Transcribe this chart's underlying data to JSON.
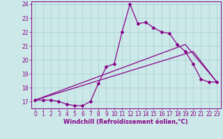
{
  "xlabel": "Windchill (Refroidissement éolien,°C)",
  "bg_color": "#cce8e8",
  "line_color": "#880088",
  "xlim": [
    -0.5,
    23.5
  ],
  "ylim": [
    16.5,
    24.2
  ],
  "yticks": [
    17,
    18,
    19,
    20,
    21,
    22,
    23,
    24
  ],
  "xticks": [
    0,
    1,
    2,
    3,
    4,
    5,
    6,
    7,
    8,
    9,
    10,
    11,
    12,
    13,
    14,
    15,
    16,
    17,
    18,
    19,
    20,
    21,
    22,
    23
  ],
  "curve1_x": [
    0,
    1,
    2,
    3,
    4,
    5,
    6,
    7,
    8,
    9,
    10,
    11,
    12,
    13,
    14,
    15,
    16,
    17,
    18,
    19,
    20,
    21,
    22,
    23
  ],
  "curve1_y": [
    17.1,
    17.1,
    17.1,
    17.0,
    16.8,
    16.7,
    16.7,
    17.0,
    18.3,
    19.5,
    19.7,
    22.0,
    24.0,
    22.6,
    22.7,
    22.3,
    22.0,
    21.9,
    21.1,
    20.6,
    19.7,
    18.6,
    18.4,
    18.4
  ],
  "curve2_x": [
    0,
    19,
    23
  ],
  "curve2_y": [
    17.1,
    21.1,
    18.4
  ],
  "curve3_x": [
    0,
    20,
    23
  ],
  "curve3_y": [
    17.1,
    20.6,
    18.4
  ],
  "grid_color": "#aad4d4",
  "marker": "D",
  "marker_size": 2.0,
  "line_width": 0.9,
  "xlabel_fontsize": 6.0,
  "tick_fontsize": 5.5
}
